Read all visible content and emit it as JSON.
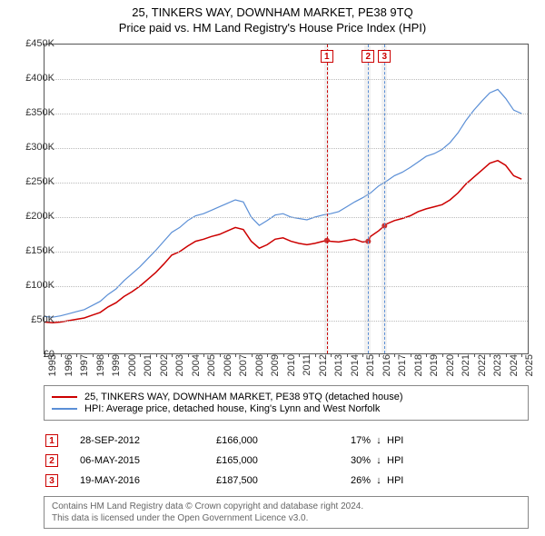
{
  "title": "25, TINKERS WAY, DOWNHAM MARKET, PE38 9TQ",
  "subtitle": "Price paid vs. HM Land Registry's House Price Index (HPI)",
  "chart": {
    "type": "line",
    "background_color": "#ffffff",
    "grid_color": "#bbbbbb",
    "border_color": "#555555",
    "x_range": [
      1995,
      2025.5
    ],
    "y_range": [
      0,
      450000
    ],
    "y_ticks": [
      0,
      50000,
      100000,
      150000,
      200000,
      250000,
      300000,
      350000,
      400000,
      450000
    ],
    "y_tick_labels": [
      "£0",
      "£50K",
      "£100K",
      "£150K",
      "£200K",
      "£250K",
      "£300K",
      "£350K",
      "£400K",
      "£450K"
    ],
    "x_ticks": [
      1995,
      1996,
      1997,
      1998,
      1999,
      2000,
      2001,
      2002,
      2003,
      2004,
      2005,
      2006,
      2007,
      2008,
      2009,
      2010,
      2011,
      2012,
      2013,
      2014,
      2015,
      2016,
      2017,
      2018,
      2019,
      2020,
      2021,
      2022,
      2023,
      2024,
      2025
    ],
    "label_fontsize": 11,
    "title_fontsize": 13,
    "series": [
      {
        "name": "property",
        "label": "25, TINKERS WAY, DOWNHAM MARKET, PE38 9TQ (detached house)",
        "color": "#cc0000",
        "line_width": 1.5,
        "data": [
          [
            1995,
            48000
          ],
          [
            1995.5,
            47000
          ],
          [
            1996,
            48000
          ],
          [
            1996.5,
            50000
          ],
          [
            1997,
            52000
          ],
          [
            1997.5,
            54000
          ],
          [
            1998,
            58000
          ],
          [
            1998.5,
            62000
          ],
          [
            1999,
            70000
          ],
          [
            1999.5,
            76000
          ],
          [
            2000,
            85000
          ],
          [
            2000.5,
            92000
          ],
          [
            2001,
            100000
          ],
          [
            2001.5,
            110000
          ],
          [
            2002,
            120000
          ],
          [
            2002.5,
            132000
          ],
          [
            2003,
            145000
          ],
          [
            2003.5,
            150000
          ],
          [
            2004,
            158000
          ],
          [
            2004.5,
            165000
          ],
          [
            2005,
            168000
          ],
          [
            2005.5,
            172000
          ],
          [
            2006,
            175000
          ],
          [
            2006.5,
            180000
          ],
          [
            2007,
            185000
          ],
          [
            2007.5,
            182000
          ],
          [
            2008,
            165000
          ],
          [
            2008.5,
            155000
          ],
          [
            2009,
            160000
          ],
          [
            2009.5,
            168000
          ],
          [
            2010,
            170000
          ],
          [
            2010.5,
            165000
          ],
          [
            2011,
            162000
          ],
          [
            2011.5,
            160000
          ],
          [
            2012,
            162000
          ],
          [
            2012.5,
            165000
          ],
          [
            2012.75,
            166000
          ],
          [
            2013,
            165000
          ],
          [
            2013.5,
            164000
          ],
          [
            2014,
            166000
          ],
          [
            2014.5,
            168000
          ],
          [
            2015,
            164000
          ],
          [
            2015.35,
            165000
          ],
          [
            2015.5,
            172000
          ],
          [
            2016,
            180000
          ],
          [
            2016.38,
            187500
          ],
          [
            2016.5,
            190000
          ],
          [
            2017,
            195000
          ],
          [
            2017.5,
            198000
          ],
          [
            2018,
            202000
          ],
          [
            2018.5,
            208000
          ],
          [
            2019,
            212000
          ],
          [
            2019.5,
            215000
          ],
          [
            2020,
            218000
          ],
          [
            2020.5,
            225000
          ],
          [
            2021,
            235000
          ],
          [
            2021.5,
            248000
          ],
          [
            2022,
            258000
          ],
          [
            2022.5,
            268000
          ],
          [
            2023,
            278000
          ],
          [
            2023.5,
            282000
          ],
          [
            2024,
            275000
          ],
          [
            2024.5,
            260000
          ],
          [
            2025,
            255000
          ]
        ]
      },
      {
        "name": "hpi",
        "label": "HPI: Average price, detached house, King's Lynn and West Norfolk",
        "color": "#5b8fd6",
        "line_width": 1.2,
        "data": [
          [
            1995,
            56000
          ],
          [
            1995.5,
            55000
          ],
          [
            1996,
            57000
          ],
          [
            1996.5,
            60000
          ],
          [
            1997,
            63000
          ],
          [
            1997.5,
            66000
          ],
          [
            1998,
            72000
          ],
          [
            1998.5,
            78000
          ],
          [
            1999,
            88000
          ],
          [
            1999.5,
            96000
          ],
          [
            2000,
            108000
          ],
          [
            2000.5,
            118000
          ],
          [
            2001,
            128000
          ],
          [
            2001.5,
            140000
          ],
          [
            2002,
            152000
          ],
          [
            2002.5,
            165000
          ],
          [
            2003,
            178000
          ],
          [
            2003.5,
            185000
          ],
          [
            2004,
            195000
          ],
          [
            2004.5,
            202000
          ],
          [
            2005,
            205000
          ],
          [
            2005.5,
            210000
          ],
          [
            2006,
            215000
          ],
          [
            2006.5,
            220000
          ],
          [
            2007,
            225000
          ],
          [
            2007.5,
            222000
          ],
          [
            2008,
            200000
          ],
          [
            2008.5,
            188000
          ],
          [
            2009,
            195000
          ],
          [
            2009.5,
            203000
          ],
          [
            2010,
            205000
          ],
          [
            2010.5,
            200000
          ],
          [
            2011,
            198000
          ],
          [
            2011.5,
            196000
          ],
          [
            2012,
            200000
          ],
          [
            2012.5,
            203000
          ],
          [
            2013,
            205000
          ],
          [
            2013.5,
            208000
          ],
          [
            2014,
            215000
          ],
          [
            2014.5,
            222000
          ],
          [
            2015,
            228000
          ],
          [
            2015.5,
            235000
          ],
          [
            2016,
            245000
          ],
          [
            2016.5,
            252000
          ],
          [
            2017,
            260000
          ],
          [
            2017.5,
            265000
          ],
          [
            2018,
            272000
          ],
          [
            2018.5,
            280000
          ],
          [
            2019,
            288000
          ],
          [
            2019.5,
            292000
          ],
          [
            2020,
            298000
          ],
          [
            2020.5,
            308000
          ],
          [
            2021,
            322000
          ],
          [
            2021.5,
            340000
          ],
          [
            2022,
            355000
          ],
          [
            2022.5,
            368000
          ],
          [
            2023,
            380000
          ],
          [
            2023.5,
            385000
          ],
          [
            2024,
            372000
          ],
          [
            2024.5,
            355000
          ],
          [
            2025,
            350000
          ]
        ]
      }
    ],
    "sale_markers": [
      {
        "n": "1",
        "year": 2012.75,
        "price": 166000,
        "line_color": "#cc0000"
      },
      {
        "n": "2",
        "year": 2015.35,
        "price": 165000,
        "line_color": "#5b8fd6"
      },
      {
        "n": "3",
        "year": 2016.38,
        "price": 187500,
        "line_color": "#5b8fd6"
      }
    ],
    "shade_regions": [
      {
        "from": 2012.6,
        "to": 2012.9
      },
      {
        "from": 2015.1,
        "to": 2015.5
      },
      {
        "from": 2016.2,
        "to": 2016.55
      }
    ],
    "shade_color": "rgba(200,200,200,0.25)",
    "point_radius": 3
  },
  "legend": {
    "border_color": "#888888",
    "items": [
      {
        "color": "#cc0000",
        "label": "25, TINKERS WAY, DOWNHAM MARKET, PE38 9TQ (detached house)"
      },
      {
        "color": "#5b8fd6",
        "label": "HPI: Average price, detached house, King's Lynn and West Norfolk"
      }
    ]
  },
  "sales": [
    {
      "n": "1",
      "date": "28-SEP-2012",
      "price": "£166,000",
      "diff": "17%",
      "direction": "↓",
      "vs": "HPI"
    },
    {
      "n": "2",
      "date": "06-MAY-2015",
      "price": "£165,000",
      "diff": "30%",
      "direction": "↓",
      "vs": "HPI"
    },
    {
      "n": "3",
      "date": "19-MAY-2016",
      "price": "£187,500",
      "diff": "26%",
      "direction": "↓",
      "vs": "HPI"
    }
  ],
  "footer": {
    "line1": "Contains HM Land Registry data © Crown copyright and database right 2024.",
    "line2": "This data is licensed under the Open Government Licence v3.0.",
    "text_color": "#666666"
  },
  "marker_box": {
    "border_color": "#cc0000",
    "text_color": "#cc0000",
    "background_color": "#ffffff"
  }
}
